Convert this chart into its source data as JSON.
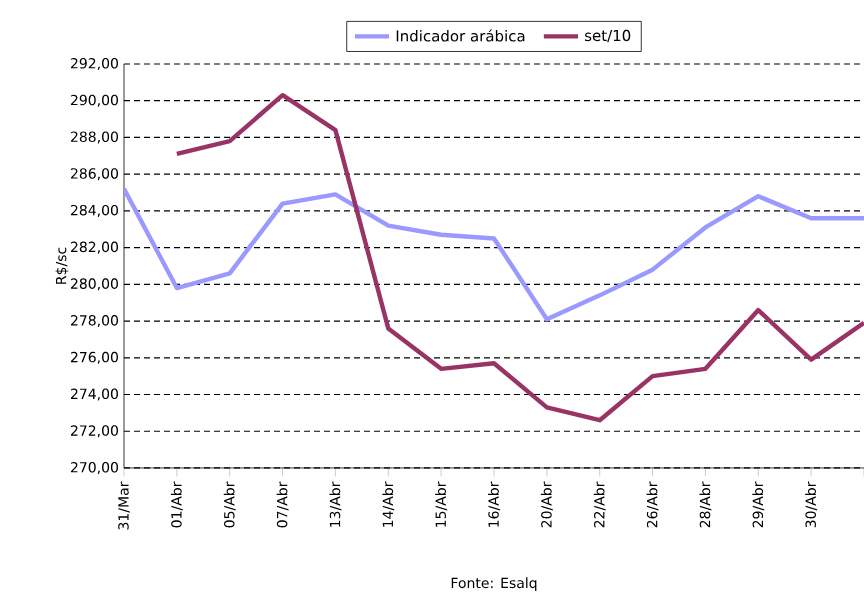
{
  "chart_data": {
    "type": "line",
    "ylabel": "R$/sc",
    "categories": [
      "31/Mar",
      "01/Abr",
      "05/Abr",
      "07/Abr",
      "13/Abr",
      "14/Abr",
      "15/Abr",
      "16/Abr",
      "20/Abr",
      "22/Abr",
      "26/Abr",
      "28/Abr",
      "29/Abr",
      "30/Abr",
      null
    ],
    "series": [
      {
        "name": "Indicador arábica",
        "color": "#9999ff",
        "values": [
          285.2,
          279.8,
          280.6,
          284.4,
          284.9,
          283.2,
          282.7,
          282.5,
          278.1,
          279.4,
          280.8,
          283.1,
          284.8,
          283.6,
          283.6
        ]
      },
      {
        "name": "set/10",
        "color": "#993366",
        "values": [
          null,
          287.1,
          287.8,
          290.3,
          288.4,
          277.6,
          275.4,
          275.7,
          273.3,
          272.6,
          275.0,
          275.4,
          278.6,
          275.9,
          277.9
        ]
      }
    ],
    "ylim": [
      270,
      292
    ],
    "yticks": [
      {
        "value": 270,
        "label": "270,00"
      },
      {
        "value": 272,
        "label": "272,00"
      },
      {
        "value": 274,
        "label": "274,00"
      },
      {
        "value": 276,
        "label": "276,00"
      },
      {
        "value": 278,
        "label": "278,00"
      },
      {
        "value": 280,
        "label": "280,00"
      },
      {
        "value": 282,
        "label": "282,00"
      },
      {
        "value": 284,
        "label": "284,00"
      },
      {
        "value": 286,
        "label": "286,00"
      },
      {
        "value": 288,
        "label": "288,00"
      },
      {
        "value": 290,
        "label": "290,00"
      },
      {
        "value": 292,
        "label": "292,00"
      }
    ],
    "grid": "y",
    "legend": "top",
    "marker": "none",
    "line_style": "solid",
    "annotations": [
      "Fonte: Esalq"
    ]
  }
}
